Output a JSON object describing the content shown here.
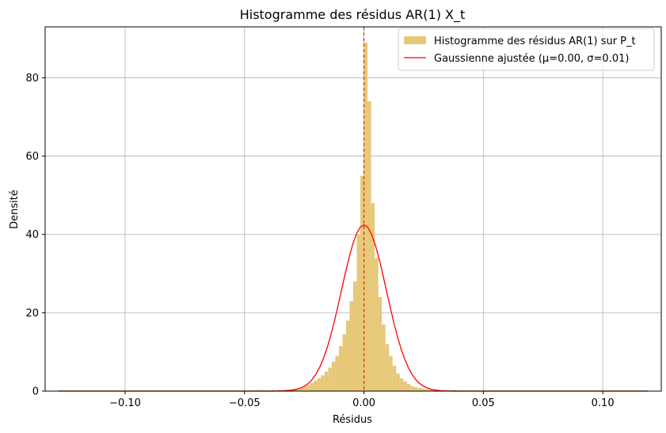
{
  "chart_data": {
    "type": "bar",
    "title": "Histogramme des résidus AR(1) X_t",
    "xlabel": "Résidus",
    "ylabel": "Densité",
    "xlim": [
      -0.1335,
      0.1245
    ],
    "ylim": [
      0,
      93
    ],
    "xticks": [
      -0.1,
      -0.05,
      0.0,
      0.05,
      0.1
    ],
    "xtick_labels": [
      "−0.10",
      "−0.05",
      "0.00",
      "0.05",
      "0.10"
    ],
    "yticks": [
      0,
      20,
      40,
      60,
      80
    ],
    "ytick_labels": [
      "0",
      "20",
      "40",
      "60",
      "80"
    ],
    "grid": true,
    "legend_position": "top-right",
    "colors": {
      "histogram": "#e6c878",
      "gaussian": "#ff0000",
      "mean_line": "#ff0000"
    },
    "series": [
      {
        "name": "Histogramme des résidus AR(1) sur P_t",
        "kind": "histogram",
        "bin_width": 0.0015,
        "bins": [
          [
            -0.0435,
            0.3
          ],
          [
            -0.042,
            0.2
          ],
          [
            -0.0405,
            0.2
          ],
          [
            -0.039,
            0.2
          ],
          [
            -0.0375,
            0.2
          ],
          [
            -0.036,
            0.3
          ],
          [
            -0.0345,
            0.3
          ],
          [
            -0.033,
            0.4
          ],
          [
            -0.0315,
            0.4
          ],
          [
            -0.03,
            0.6
          ],
          [
            -0.0285,
            0.7
          ],
          [
            -0.027,
            0.9
          ],
          [
            -0.0255,
            1.2
          ],
          [
            -0.024,
            1.6
          ],
          [
            -0.0225,
            2.1
          ],
          [
            -0.021,
            2.7
          ],
          [
            -0.0195,
            3.3
          ],
          [
            -0.018,
            4.0
          ],
          [
            -0.0165,
            5.0
          ],
          [
            -0.015,
            6.0
          ],
          [
            -0.0135,
            7.5
          ],
          [
            -0.012,
            9.0
          ],
          [
            -0.0105,
            11.5
          ],
          [
            -0.009,
            14.5
          ],
          [
            -0.0075,
            18.0
          ],
          [
            -0.006,
            23.0
          ],
          [
            -0.0045,
            28.0
          ],
          [
            -0.003,
            40.0
          ],
          [
            -0.0015,
            55.0
          ],
          [
            0.0,
            89.0
          ],
          [
            0.0015,
            74.0
          ],
          [
            0.003,
            48.0
          ],
          [
            0.0045,
            34.0
          ],
          [
            0.006,
            24.0
          ],
          [
            0.0075,
            17.0
          ],
          [
            0.009,
            12.0
          ],
          [
            0.0105,
            9.0
          ],
          [
            0.012,
            6.5
          ],
          [
            0.0135,
            4.5
          ],
          [
            0.015,
            3.3
          ],
          [
            0.0165,
            2.5
          ],
          [
            0.018,
            1.8
          ],
          [
            0.0195,
            1.3
          ],
          [
            0.021,
            1.0
          ],
          [
            0.0225,
            0.8
          ],
          [
            0.024,
            0.6
          ],
          [
            0.0255,
            0.5
          ],
          [
            0.027,
            0.4
          ],
          [
            0.0285,
            0.3
          ],
          [
            0.03,
            0.3
          ],
          [
            0.0315,
            0.2
          ],
          [
            0.033,
            0.2
          ],
          [
            0.0345,
            0.2
          ],
          [
            0.036,
            0.2
          ],
          [
            0.0375,
            0.2
          ],
          [
            0.039,
            0.1
          ],
          [
            0.0405,
            0.1
          ],
          [
            0.042,
            0.1
          ]
        ]
      },
      {
        "name": "Gaussienne ajustée (μ=0.00, σ=0.01)",
        "kind": "line",
        "mu": 0.0,
        "sigma": 0.0094,
        "x_range": [
          -0.128,
          0.119
        ]
      }
    ],
    "vline": {
      "x": 0.0,
      "style": "dashed"
    }
  }
}
